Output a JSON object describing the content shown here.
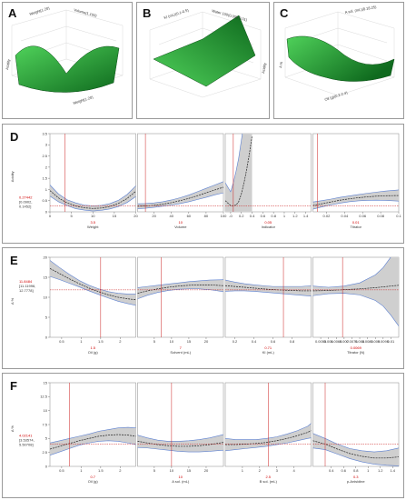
{
  "top": [
    {
      "label": "A",
      "axes": [
        "Weight(1.20)",
        "Volume(1.100)",
        "Weight(1.20)",
        "Acidity"
      ]
    },
    {
      "label": "B",
      "axes": [
        "KI (mL)(0.1-0.5)",
        "Water 100(0.005-0.01)",
        "Acidity"
      ]
    },
    {
      "label": "C",
      "axes": [
        "Oil (g)(0.2-2.4)",
        "A sol. (mL)(0.18.25)",
        "A %"
      ]
    }
  ],
  "colors": {
    "surface_dark": "#0f6a1e",
    "surface_light": "#4fd15a",
    "band": "#cfcfcf",
    "curve": "#222222",
    "limit": "#5b7fd0",
    "ref": "#cc2222"
  },
  "chart_data": [
    {
      "type": "line",
      "label": "D",
      "ylabel": "Acidity",
      "y_value": [
        "0.27442",
        "[0.0902,",
        "0.1452]"
      ],
      "ylim": [
        0,
        3.5
      ],
      "yticks": [
        "3.5",
        "3",
        "2.5",
        "2",
        "1.5",
        "1",
        "0.5",
        "0"
      ],
      "ref_y": 0.27,
      "subplots": [
        {
          "xlabel": "Weight",
          "value": "3.5",
          "xmin": 0,
          "xmax": 20,
          "ref_x": 3.5,
          "xticks": [
            "0",
            "5",
            "10",
            "15",
            "20"
          ],
          "x": [
            0,
            2,
            4,
            6,
            8,
            10,
            12,
            14,
            16,
            18,
            20
          ],
          "y": [
            0.95,
            0.62,
            0.4,
            0.26,
            0.18,
            0.15,
            0.17,
            0.24,
            0.38,
            0.6,
            0.92
          ],
          "lo": [
            0.7,
            0.45,
            0.28,
            0.14,
            0.08,
            0.04,
            0.07,
            0.13,
            0.24,
            0.42,
            0.68
          ],
          "hi": [
            1.2,
            0.8,
            0.54,
            0.4,
            0.3,
            0.27,
            0.29,
            0.37,
            0.52,
            0.78,
            1.16
          ]
        },
        {
          "xlabel": "Volume",
          "value": "10",
          "xmin": 1,
          "xmax": 100,
          "ref_x": 10,
          "xticks": [
            "20",
            "40",
            "60",
            "80",
            "100"
          ],
          "x": [
            1,
            10,
            20,
            30,
            40,
            50,
            60,
            70,
            80,
            90,
            100
          ],
          "y": [
            0.25,
            0.26,
            0.29,
            0.34,
            0.41,
            0.5,
            0.6,
            0.72,
            0.85,
            0.98,
            1.1
          ],
          "lo": [
            0.14,
            0.16,
            0.2,
            0.25,
            0.3,
            0.37,
            0.45,
            0.55,
            0.65,
            0.76,
            0.85
          ],
          "hi": [
            0.36,
            0.37,
            0.4,
            0.45,
            0.53,
            0.63,
            0.75,
            0.9,
            1.05,
            1.2,
            1.35
          ]
        },
        {
          "xlabel": "Indicator",
          "value": "0.05",
          "xmin": -0.1,
          "xmax": 1.5,
          "ref_x": 0.05,
          "xticks": [
            "-0",
            "0.2",
            "0.4",
            "0.6",
            "0.8",
            "1",
            "1.2",
            "1.4"
          ],
          "x": [
            -0.1,
            0.0,
            0.05,
            0.1,
            0.15,
            0.2,
            0.25,
            0.3,
            0.35,
            0.4
          ],
          "y": [
            0.5,
            0.28,
            0.27,
            0.3,
            0.45,
            0.8,
            1.3,
            1.9,
            2.6,
            3.4
          ],
          "lo": [
            -0.4,
            -0.05,
            0.0,
            -0.1,
            -0.4,
            -0.9,
            -1.6,
            -2.6,
            -3.5,
            -4.5
          ],
          "hi": [
            1.3,
            0.9,
            1.3,
            1.8,
            2.4,
            3.2,
            4.0,
            5.0,
            6.0,
            7.0
          ]
        },
        {
          "xlabel": "Titrator",
          "value": "0.01",
          "xmin": 0.005,
          "xmax": 0.1,
          "ref_x": 0.01,
          "xticks": [
            "0.02",
            "0.04",
            "0.06",
            "0.08",
            "0.1"
          ],
          "x": [
            0.005,
            0.015,
            0.025,
            0.035,
            0.045,
            0.055,
            0.065,
            0.075,
            0.085,
            0.1
          ],
          "y": [
            0.28,
            0.36,
            0.44,
            0.52,
            0.58,
            0.63,
            0.67,
            0.7,
            0.72,
            0.73
          ],
          "lo": [
            0.12,
            0.22,
            0.31,
            0.39,
            0.45,
            0.49,
            0.51,
            0.52,
            0.51,
            0.48
          ],
          "hi": [
            0.44,
            0.5,
            0.57,
            0.65,
            0.71,
            0.77,
            0.83,
            0.88,
            0.93,
            0.98
          ]
        }
      ]
    },
    {
      "type": "line",
      "label": "E",
      "ylabel": "A %",
      "y_value": [
        "11.8484",
        "[11.11996,",
        "12.7778]"
      ],
      "ylim": [
        0,
        20
      ],
      "yticks": [
        "20",
        "15",
        "10",
        "5",
        "0"
      ],
      "ref_y": 11.85,
      "subplots": [
        {
          "xlabel": "Oil (g)",
          "value": "1.5",
          "xmin": 0.2,
          "xmax": 2.4,
          "ref_x": 1.5,
          "xticks": [
            "0.5",
            "1",
            "1.5",
            "2"
          ],
          "x": [
            0.2,
            0.45,
            0.7,
            0.95,
            1.2,
            1.45,
            1.7,
            1.95,
            2.2,
            2.4
          ],
          "y": [
            17.2,
            15.9,
            14.6,
            13.4,
            12.3,
            11.4,
            10.6,
            10.0,
            9.6,
            9.4
          ],
          "lo": [
            15.2,
            14.4,
            13.5,
            12.6,
            11.6,
            10.7,
            9.8,
            9.0,
            8.4,
            8.0
          ],
          "hi": [
            19.2,
            17.4,
            15.7,
            14.2,
            13.0,
            12.1,
            11.4,
            11.0,
            10.8,
            10.8
          ]
        },
        {
          "xlabel": "Solvent (mL)",
          "value": "7",
          "xmin": 0.18,
          "xmax": 25,
          "ref_x": 7,
          "xticks": [
            "5",
            "10",
            "15",
            "20"
          ],
          "x": [
            0.18,
            3,
            6,
            9,
            12,
            15,
            18,
            21,
            25
          ],
          "y": [
            11.0,
            11.6,
            12.1,
            12.5,
            12.8,
            13.0,
            13.1,
            13.1,
            12.9
          ],
          "lo": [
            9.6,
            10.5,
            11.2,
            11.7,
            12.0,
            12.1,
            12.1,
            11.9,
            11.4
          ],
          "hi": [
            12.4,
            12.7,
            13.0,
            13.3,
            13.6,
            13.9,
            14.1,
            14.3,
            14.4
          ]
        },
        {
          "xlabel": "KI (mL)",
          "value": "0.71",
          "xmin": 0.1,
          "xmax": 1.0,
          "ref_x": 0.71,
          "xticks": [
            "0.2",
            "0.4",
            "0.6",
            "0.8"
          ],
          "x": [
            0.1,
            0.2,
            0.3,
            0.4,
            0.5,
            0.6,
            0.7,
            0.8,
            0.9,
            1.0
          ],
          "y": [
            12.9,
            12.7,
            12.5,
            12.3,
            12.1,
            11.9,
            11.8,
            11.7,
            11.6,
            11.6
          ],
          "lo": [
            11.5,
            11.6,
            11.6,
            11.5,
            11.3,
            11.1,
            10.9,
            10.7,
            10.5,
            10.3
          ],
          "hi": [
            14.3,
            13.8,
            13.4,
            13.1,
            12.9,
            12.7,
            12.7,
            12.7,
            12.7,
            12.9
          ]
        },
        {
          "xlabel": "Titrator (N)",
          "value": "0.0069",
          "xmin": 0.005,
          "xmax": 0.0105,
          "ref_x": 0.0069,
          "xticks": [
            "0.0055",
            "0.006",
            "0.0065",
            "0.007",
            "0.0075",
            "0.008",
            "0.0085",
            "0.009",
            "0.0095",
            "0.01"
          ],
          "x": [
            0.005,
            0.006,
            0.007,
            0.008,
            0.009,
            0.0095,
            0.01,
            0.0105
          ],
          "y": [
            11.6,
            11.7,
            11.9,
            12.1,
            12.4,
            12.6,
            12.8,
            13.0
          ],
          "lo": [
            10.4,
            10.9,
            11.0,
            10.6,
            9.2,
            7.8,
            5.5,
            2.8
          ],
          "hi": [
            12.8,
            12.5,
            12.8,
            13.6,
            15.6,
            17.4,
            20.1,
            23.2
          ]
        }
      ]
    },
    {
      "type": "line",
      "label": "F",
      "ylabel": "A %",
      "y_value": [
        "4.02141",
        "[3.53574,",
        "5.50708]"
      ],
      "ylim": [
        0,
        15
      ],
      "yticks": [
        "15",
        "12.5",
        "10",
        "7.5",
        "5",
        "2.5",
        "0"
      ],
      "ref_y": 4.02,
      "subplots": [
        {
          "xlabel": "Oil (g)",
          "value": "0.7",
          "xmin": 0.2,
          "xmax": 2.4,
          "ref_x": 0.7,
          "xticks": [
            "0.5",
            "1",
            "1.5",
            "2"
          ],
          "x": [
            0.2,
            0.45,
            0.7,
            0.95,
            1.2,
            1.45,
            1.7,
            1.95,
            2.2,
            2.4
          ],
          "y": [
            3.1,
            3.6,
            4.1,
            4.6,
            5.0,
            5.4,
            5.6,
            5.7,
            5.6,
            5.4
          ],
          "lo": [
            2.0,
            2.6,
            3.2,
            3.8,
            4.2,
            4.5,
            4.6,
            4.5,
            4.2,
            3.9
          ],
          "hi": [
            4.2,
            4.6,
            5.0,
            5.4,
            5.8,
            6.3,
            6.6,
            6.9,
            7.0,
            6.9
          ]
        },
        {
          "xlabel": "A sol. (mL)",
          "value": "10",
          "xmin": 0.18,
          "xmax": 25,
          "ref_x": 10,
          "xticks": [
            "5",
            "10",
            "15",
            "20"
          ],
          "x": [
            0.18,
            3,
            6,
            9,
            12,
            15,
            18,
            21,
            25
          ],
          "y": [
            4.5,
            4.2,
            3.9,
            3.7,
            3.6,
            3.6,
            3.7,
            3.9,
            4.3
          ],
          "lo": [
            3.4,
            3.3,
            3.1,
            2.9,
            2.7,
            2.6,
            2.6,
            2.7,
            2.9
          ],
          "hi": [
            5.6,
            5.1,
            4.7,
            4.5,
            4.5,
            4.6,
            4.8,
            5.1,
            5.7
          ]
        },
        {
          "xlabel": "B sol. (mL)",
          "value": "2.5",
          "xmin": 0,
          "xmax": 5,
          "ref_x": 2.5,
          "xticks": [
            "1",
            "2",
            "3",
            "4"
          ],
          "x": [
            0,
            0.6,
            1.2,
            1.8,
            2.4,
            3.0,
            3.6,
            4.2,
            4.8,
            5.0
          ],
          "y": [
            3.9,
            3.9,
            4.0,
            4.1,
            4.3,
            4.6,
            5.0,
            5.5,
            6.1,
            6.4
          ],
          "lo": [
            2.8,
            3.0,
            3.2,
            3.4,
            3.6,
            3.9,
            4.2,
            4.6,
            5.0,
            5.1
          ],
          "hi": [
            5.0,
            4.8,
            4.8,
            4.8,
            5.0,
            5.3,
            5.8,
            6.4,
            7.2,
            7.7
          ]
        },
        {
          "xlabel": "p-Anisidine",
          "value": "0.3",
          "xmin": 0.1,
          "xmax": 1.5,
          "ref_x": 0.3,
          "xticks": [
            "0.4",
            "0.6",
            "0.8",
            "1",
            "1.2",
            "1.4"
          ],
          "x": [
            0.1,
            0.3,
            0.5,
            0.7,
            0.9,
            1.1,
            1.3,
            1.5
          ],
          "y": [
            4.6,
            4.0,
            3.1,
            2.3,
            1.8,
            1.5,
            1.5,
            1.7
          ],
          "lo": [
            3.3,
            3.0,
            2.2,
            1.4,
            0.8,
            0.4,
            0.2,
            0.1
          ],
          "hi": [
            5.9,
            5.0,
            4.0,
            3.2,
            2.8,
            2.6,
            2.8,
            3.3
          ]
        }
      ]
    }
  ]
}
